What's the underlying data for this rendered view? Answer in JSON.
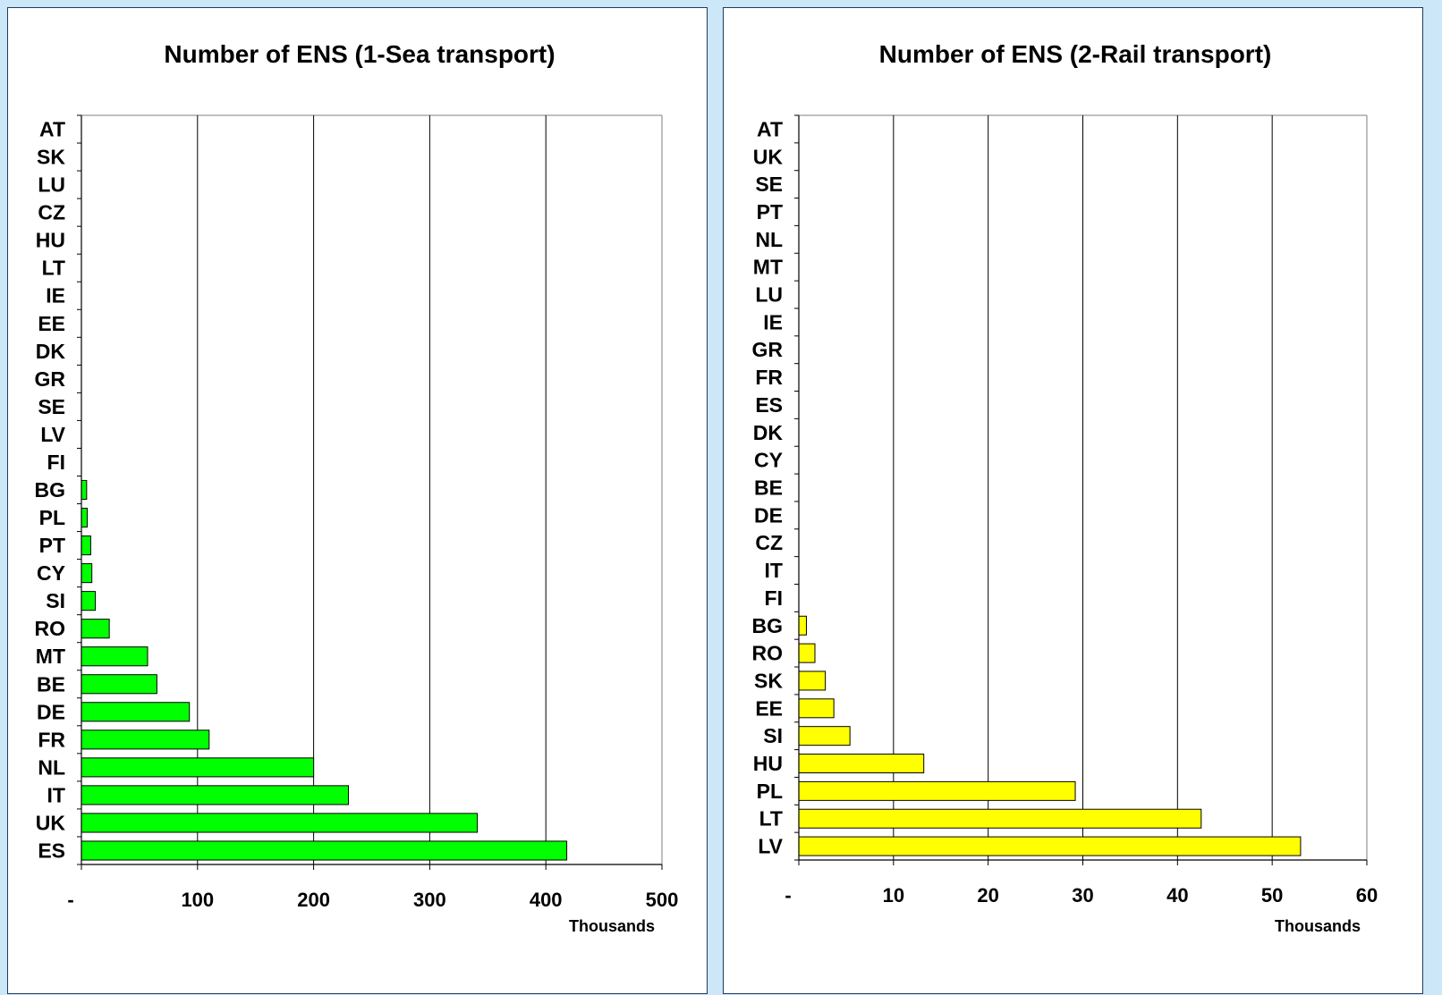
{
  "chart_data": [
    {
      "type": "bar",
      "orientation": "horizontal",
      "title": "Number of ENS (1-Sea transport)",
      "unit_label": "Thousands",
      "color": "#00ff00",
      "xlim": [
        0,
        500
      ],
      "x_ticks": [
        0,
        100,
        200,
        300,
        400,
        500
      ],
      "x_tick_labels": [
        "-",
        "100",
        "200",
        "300",
        "400",
        "500"
      ],
      "grid": true,
      "categories": [
        "AT",
        "SK",
        "LU",
        "CZ",
        "HU",
        "LT",
        "IE",
        "EE",
        "DK",
        "GR",
        "SE",
        "LV",
        "FI",
        "BG",
        "PL",
        "PT",
        "CY",
        "SI",
        "RO",
        "MT",
        "BE",
        "DE",
        "FR",
        "NL",
        "IT",
        "UK",
        "ES"
      ],
      "values": [
        0,
        0,
        0,
        0,
        0,
        0,
        0,
        0,
        0,
        0,
        0,
        0,
        0,
        4.5,
        5,
        8,
        9,
        12,
        24,
        57,
        65,
        93,
        110,
        200,
        230,
        341,
        418
      ]
    },
    {
      "type": "bar",
      "orientation": "horizontal",
      "title": "Number of ENS (2-Rail transport)",
      "unit_label": "Thousands",
      "color": "#ffff00",
      "xlim": [
        0,
        60
      ],
      "x_ticks": [
        0,
        10,
        20,
        30,
        40,
        50,
        60
      ],
      "x_tick_labels": [
        "-",
        "10",
        "20",
        "30",
        "40",
        "50",
        "60"
      ],
      "grid": true,
      "categories": [
        "AT",
        "UK",
        "SE",
        "PT",
        "NL",
        "MT",
        "LU",
        "IE",
        "GR",
        "FR",
        "ES",
        "DK",
        "CY",
        "BE",
        "DE",
        "CZ",
        "IT",
        "FI",
        "BG",
        "RO",
        "SK",
        "EE",
        "SI",
        "HU",
        "PL",
        "LT",
        "LV"
      ],
      "values": [
        0,
        0,
        0,
        0,
        0,
        0,
        0,
        0,
        0,
        0,
        0,
        0,
        0,
        0,
        0,
        0,
        0,
        0,
        0.8,
        1.7,
        2.8,
        3.7,
        5.4,
        13.2,
        29.2,
        42.5,
        53
      ]
    }
  ]
}
